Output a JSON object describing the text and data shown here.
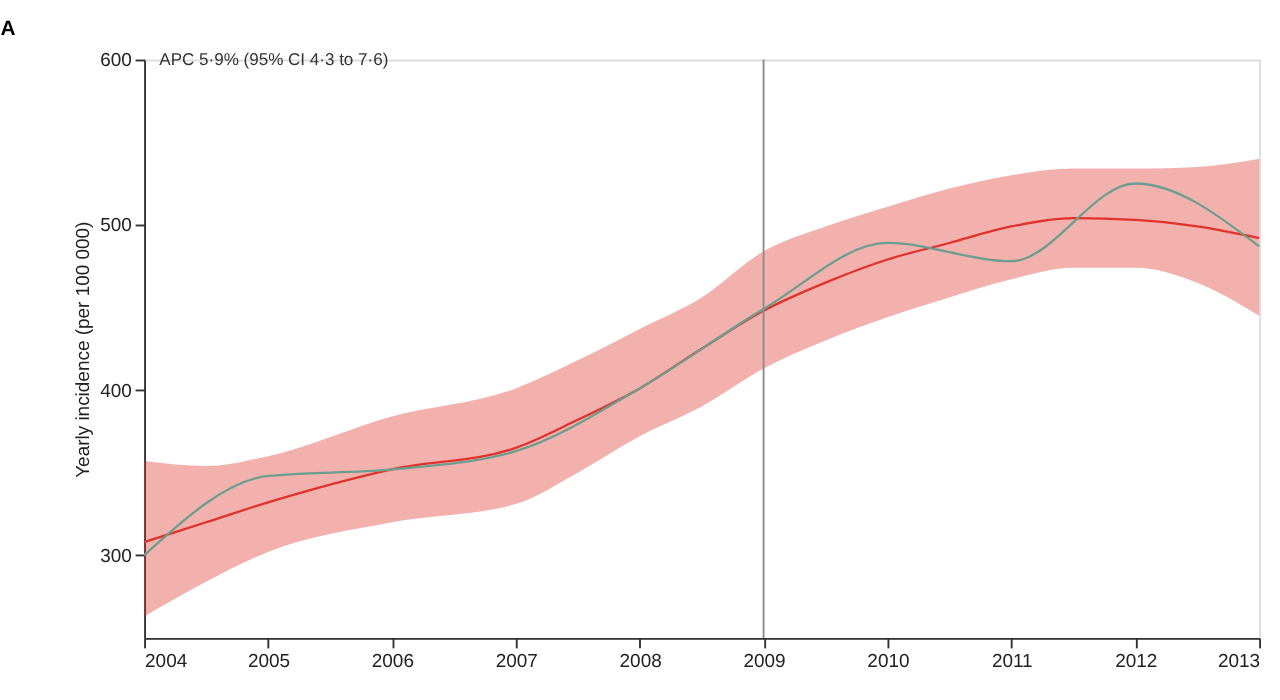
{
  "chart_data": {
    "type": "line",
    "title": "A",
    "ylabel": "Yearly incidence (per 100 000)",
    "annotations": [
      "APC 5·9% (95% CI 4·3 to 7·6)"
    ],
    "xlim": [
      2004,
      2013
    ],
    "xticks": [
      2004,
      2005,
      2006,
      2007,
      2008,
      2009,
      2010,
      2011,
      2012,
      2013
    ],
    "ylim": [
      250,
      600
    ],
    "yticks": [
      300,
      400,
      500,
      600
    ],
    "grid": false,
    "marker": "none",
    "line_style": "solid",
    "ref_lines": [
      {
        "axis": "x",
        "value": 2009,
        "color": "#8c8c8c"
      }
    ],
    "series": [
      {
        "color": "#e0322a",
        "x": [
          2004,
          2004.5,
          2005,
          2006,
          2007,
          2007.5,
          2008,
          2008.5,
          2009,
          2009.5,
          2010,
          2010.5,
          2011,
          2011.5,
          2012,
          2012.5,
          2013
        ],
        "values": [
          308,
          320,
          332,
          352,
          365,
          382,
          401,
          425,
          448,
          465,
          479,
          489,
          499,
          504,
          503,
          499,
          492
        ],
        "lower": [
          263,
          284,
          302,
          320,
          331,
          350,
          372,
          390,
          413,
          430,
          444,
          456,
          467,
          474,
          474,
          465,
          445
        ],
        "upper": [
          357,
          354,
          360,
          384,
          401,
          418,
          437,
          456,
          484,
          499,
          511,
          522,
          530,
          534,
          534,
          535,
          540
        ]
      },
      {
        "color": "#6b9e8f",
        "x": [
          2004,
          2005,
          2006,
          2007,
          2008,
          2009,
          2010,
          2011,
          2012,
          2013
        ],
        "values": [
          300,
          348,
          352,
          363,
          401,
          449,
          489,
          478,
          525,
          487
        ]
      }
    ]
  }
}
